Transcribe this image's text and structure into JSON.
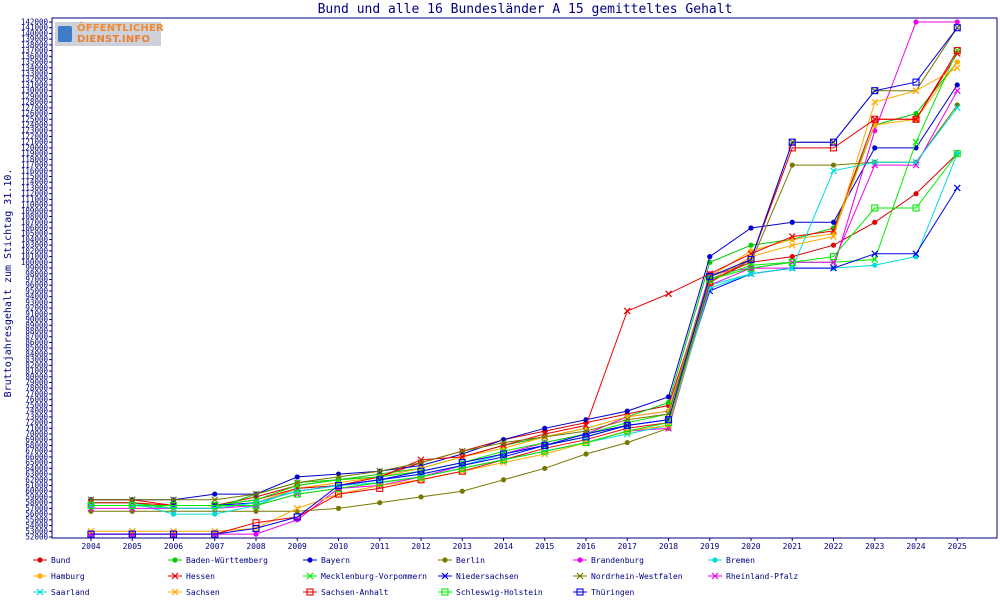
{
  "chart_data": {
    "type": "line",
    "title": "Bund und alle 16 Bundesländer A 15 gemitteltes Gehalt",
    "ylabel": "Bruttojahresgehalt zum Stichtag 31.10.",
    "xlabel": "",
    "logo": {
      "line1": "ÖFFENTLICHER",
      "line2": "DIENST.INFO"
    },
    "x": [
      2004,
      2005,
      2006,
      2007,
      2008,
      2009,
      2010,
      2011,
      2012,
      2013,
      2014,
      2015,
      2016,
      2017,
      2018,
      2019,
      2020,
      2021,
      2022,
      2023,
      2024,
      2025
    ],
    "ylim": [
      52000,
      142000
    ],
    "ytick_step": 1000,
    "grid": false,
    "legend_position": "bottom",
    "series": [
      {
        "name": "Bund",
        "color": "#dd0000",
        "marker": "dot",
        "values": [
          58500,
          58500,
          57500,
          57500,
          59000,
          61000,
          62000,
          62500,
          65000,
          67000,
          69000,
          70500,
          72000,
          73500,
          75000,
          97000,
          100000,
          101000,
          103000,
          107000,
          112000,
          119000
        ]
      },
      {
        "name": "Baden-Württemberg",
        "color": "#00cc00",
        "marker": "dot",
        "values": [
          58000,
          58000,
          57000,
          57000,
          59500,
          61500,
          62000,
          63000,
          64000,
          66000,
          68000,
          69500,
          71000,
          73000,
          75500,
          100000,
          103000,
          104000,
          106000,
          124000,
          126000,
          135000
        ]
      },
      {
        "name": "Bayern",
        "color": "#0000cc",
        "marker": "dot",
        "values": [
          58500,
          58500,
          58500,
          59500,
          59500,
          62500,
          63000,
          63500,
          64500,
          66500,
          69000,
          71000,
          72500,
          74000,
          76500,
          101000,
          106000,
          107000,
          107000,
          120000,
          120000,
          131000
        ]
      },
      {
        "name": "Berlin",
        "color": "#777700",
        "marker": "dot",
        "values": [
          56500,
          56500,
          56500,
          56500,
          56500,
          56500,
          57000,
          58000,
          59000,
          60000,
          62000,
          64000,
          66500,
          68500,
          71000,
          97500,
          100000,
          117000,
          117000,
          117500,
          117500,
          127500
        ]
      },
      {
        "name": "Brandenburg",
        "color": "#ee00ee",
        "marker": "dot",
        "values": [
          52500,
          52500,
          52500,
          52500,
          52500,
          55000,
          60500,
          61000,
          62500,
          64500,
          66500,
          68500,
          70000,
          73000,
          74000,
          98000,
          99000,
          99000,
          99000,
          123000,
          142000,
          142000
        ]
      },
      {
        "name": "Bremen",
        "color": "#00dddd",
        "marker": "dot",
        "values": [
          58000,
          58000,
          56000,
          56000,
          57500,
          60500,
          61000,
          62000,
          63000,
          64500,
          66500,
          68000,
          69500,
          71500,
          72500,
          96000,
          98000,
          99000,
          99000,
          99500,
          101000,
          119000
        ]
      },
      {
        "name": "Hamburg",
        "color": "#ffaa00",
        "marker": "dot",
        "values": [
          57500,
          57500,
          57000,
          57000,
          58000,
          60500,
          61500,
          62500,
          64000,
          66000,
          67500,
          69500,
          71000,
          73000,
          74000,
          97500,
          102000,
          104000,
          105000,
          124000,
          125000,
          135000
        ]
      },
      {
        "name": "Hessen",
        "color": "#ee0000",
        "marker": "x",
        "values": [
          58000,
          58000,
          57500,
          57500,
          58500,
          60500,
          61000,
          62500,
          65500,
          66000,
          68000,
          70000,
          71500,
          91500,
          94500,
          98000,
          101500,
          104500,
          105500,
          125000,
          125000,
          136500
        ]
      },
      {
        "name": "Mecklenburg-Vorpommern",
        "color": "#00ee00",
        "marker": "x",
        "values": [
          57500,
          57500,
          57500,
          57500,
          58500,
          61000,
          62000,
          62500,
          63500,
          65000,
          67000,
          68500,
          70000,
          72000,
          73500,
          97000,
          99500,
          100000,
          100000,
          100500,
          121000,
          137000
        ]
      },
      {
        "name": "Niedersachsen",
        "color": "#0000ee",
        "marker": "x",
        "values": [
          57500,
          57500,
          57500,
          57500,
          58000,
          60000,
          61000,
          62000,
          63000,
          64500,
          66000,
          68000,
          70000,
          71500,
          72500,
          95000,
          98000,
          99000,
          99000,
          101500,
          101500,
          113000
        ]
      },
      {
        "name": "Nordrhein-Westfalen",
        "color": "#777700",
        "marker": "x",
        "values": [
          58500,
          58500,
          58500,
          58500,
          59500,
          61500,
          62500,
          63500,
          65000,
          67000,
          68500,
          69500,
          70500,
          72500,
          73500,
          97500,
          100500,
          121000,
          121000,
          130000,
          130000,
          141000
        ]
      },
      {
        "name": "Rheinland-Pfalz",
        "color": "#ee00ee",
        "marker": "x",
        "values": [
          57000,
          57000,
          57000,
          57000,
          57500,
          59500,
          60500,
          61500,
          62500,
          64000,
          65500,
          67000,
          68500,
          70500,
          71000,
          96000,
          99000,
          100000,
          100000,
          117000,
          117000,
          130000
        ]
      },
      {
        "name": "Saarland",
        "color": "#00dddd",
        "marker": "x",
        "values": [
          57500,
          57500,
          57000,
          57000,
          58000,
          60000,
          61000,
          61500,
          62500,
          64000,
          65500,
          67000,
          68500,
          70000,
          71500,
          95500,
          98000,
          99000,
          116000,
          117500,
          117500,
          127000
        ]
      },
      {
        "name": "Sachsen",
        "color": "#ffaa00",
        "marker": "x",
        "values": [
          53000,
          53000,
          53000,
          53000,
          53500,
          57000,
          59500,
          61000,
          62000,
          63500,
          65000,
          66500,
          68500,
          70500,
          71500,
          96500,
          101000,
          103000,
          104500,
          128000,
          130000,
          134000
        ]
      },
      {
        "name": "Sachsen-Anhalt",
        "color": "#ee0000",
        "marker": "square",
        "values": [
          52500,
          52500,
          52500,
          52500,
          54500,
          55500,
          59500,
          60500,
          62000,
          63500,
          65500,
          67500,
          69000,
          71000,
          72000,
          96500,
          100500,
          120000,
          120000,
          125000,
          125000,
          137000
        ]
      },
      {
        "name": "Schleswig-Holstein",
        "color": "#00ee00",
        "marker": "square",
        "values": [
          57500,
          57500,
          57500,
          57500,
          57500,
          59500,
          60500,
          61500,
          62500,
          64000,
          65500,
          67000,
          68500,
          70500,
          72000,
          97000,
          99000,
          100000,
          101000,
          109500,
          109500,
          119000
        ]
      },
      {
        "name": "Thüringen",
        "color": "#0000ee",
        "marker": "square",
        "values": [
          52500,
          52500,
          52500,
          52500,
          53500,
          55500,
          61000,
          62000,
          63500,
          65000,
          66500,
          68000,
          69500,
          71500,
          72500,
          97500,
          100500,
          121000,
          121000,
          130000,
          131500,
          141000
        ]
      }
    ]
  }
}
